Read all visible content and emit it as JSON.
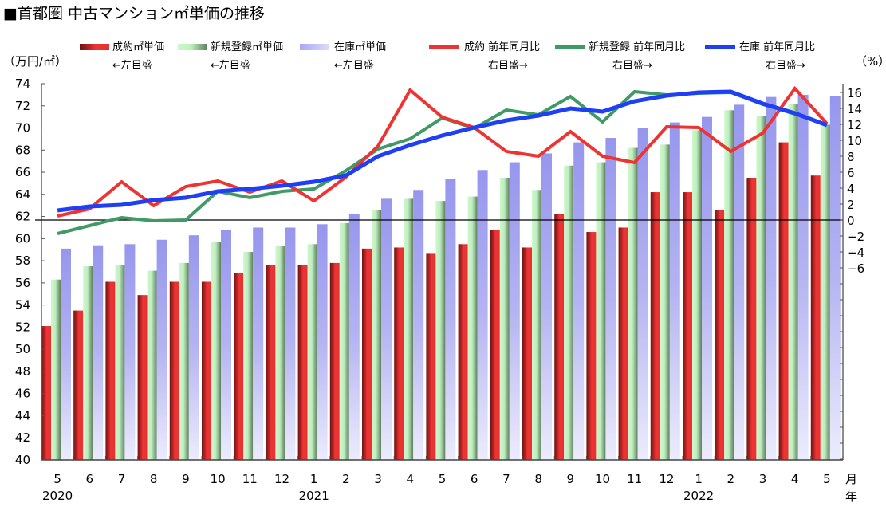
{
  "chart_data": {
    "type": "bar",
    "title": "■首都圏 中古マンション㎡単価の推移",
    "ylabel_left": "（万円/㎡）",
    "ylabel_right": "（%）",
    "xlabel_month": "月",
    "xlabel_year": "年",
    "ylim_left": [
      40,
      74
    ],
    "ylim_right": [
      -30,
      17
    ],
    "left_ticks": [
      "40",
      "42",
      "44",
      "46",
      "48",
      "50",
      "52",
      "54",
      "56",
      "58",
      "60",
      "62",
      "64",
      "66",
      "68",
      "70",
      "72",
      "74"
    ],
    "right_ticks": [
      "16",
      "14",
      "12",
      "10",
      "8",
      "6",
      "4",
      "2",
      "0",
      "−2",
      "−4",
      "−6"
    ],
    "categories": [
      "5",
      "6",
      "7",
      "8",
      "9",
      "10",
      "11",
      "12",
      "1",
      "2",
      "3",
      "4",
      "5",
      "6",
      "7",
      "8",
      "9",
      "10",
      "11",
      "12",
      "1",
      "2",
      "3",
      "4",
      "5"
    ],
    "years": [
      {
        "label": "2020",
        "index": 0
      },
      {
        "label": "2021",
        "index": 8
      },
      {
        "label": "2022",
        "index": 20
      }
    ],
    "bar_series": [
      {
        "name": "成約㎡単価",
        "note": "←左目盛",
        "color": "#e8312f",
        "values": [
          52.1,
          53.5,
          56.1,
          54.9,
          56.1,
          56.1,
          56.9,
          57.6,
          57.6,
          57.8,
          59.1,
          59.2,
          58.7,
          59.5,
          60.8,
          59.2,
          62.2,
          60.6,
          61.0,
          64.2,
          64.2,
          62.6,
          65.5,
          68.7,
          65.7
        ]
      },
      {
        "name": "新規登録㎡単価",
        "note": "←左目盛",
        "color": "#c8f5c8",
        "values": [
          56.3,
          57.5,
          57.6,
          57.1,
          57.8,
          59.7,
          58.8,
          59.3,
          59.5,
          61.4,
          62.6,
          63.6,
          63.4,
          63.8,
          65.5,
          64.4,
          66.6,
          66.9,
          68.2,
          68.5,
          69.8,
          71.6,
          71.1,
          72.2,
          70.3
        ]
      },
      {
        "name": "在庫㎡単価",
        "note": "←左目盛",
        "color": "#9a9af0",
        "values": [
          59.1,
          59.4,
          59.5,
          59.9,
          60.3,
          60.8,
          61.0,
          61.0,
          61.3,
          62.2,
          63.6,
          64.4,
          65.4,
          66.2,
          66.9,
          67.7,
          68.7,
          69.1,
          70.0,
          70.5,
          71.0,
          72.1,
          72.8,
          73.0,
          72.9
        ]
      }
    ],
    "line_series": [
      {
        "name": "成約 前年同月比",
        "note": "右目盛→",
        "color": "#ee3333",
        "values": [
          0.5,
          1.4,
          4.8,
          1.8,
          4.2,
          4.9,
          3.5,
          4.9,
          2.4,
          5.4,
          9.3,
          16.3,
          12.9,
          11.6,
          8.6,
          8.0,
          11.1,
          8.0,
          7.2,
          11.7,
          11.6,
          8.6,
          10.9,
          16.5,
          12.1
        ]
      },
      {
        "name": "新規登録 前年同月比",
        "note": "右目盛→",
        "color": "#3f9a66",
        "values": [
          -1.7,
          -0.7,
          0.3,
          -0.1,
          0.0,
          3.6,
          2.8,
          3.6,
          3.9,
          6.2,
          8.9,
          10.2,
          12.8,
          11.5,
          13.8,
          13.2,
          15.5,
          12.3,
          16.1,
          15.7,
          15.9,
          16.0,
          14.5,
          13.3,
          11.9
        ]
      },
      {
        "name": "在庫 前年同月比",
        "note": "右目盛→",
        "color": "#1f3ff5",
        "values": [
          1.2,
          1.7,
          1.9,
          2.5,
          2.8,
          3.6,
          3.9,
          4.3,
          4.8,
          5.6,
          8.0,
          9.4,
          10.6,
          11.6,
          12.5,
          13.1,
          14.0,
          13.6,
          14.9,
          15.6,
          16.0,
          16.1,
          14.6,
          13.4,
          11.9
        ]
      }
    ],
    "legend_position": "top",
    "grid": false
  }
}
